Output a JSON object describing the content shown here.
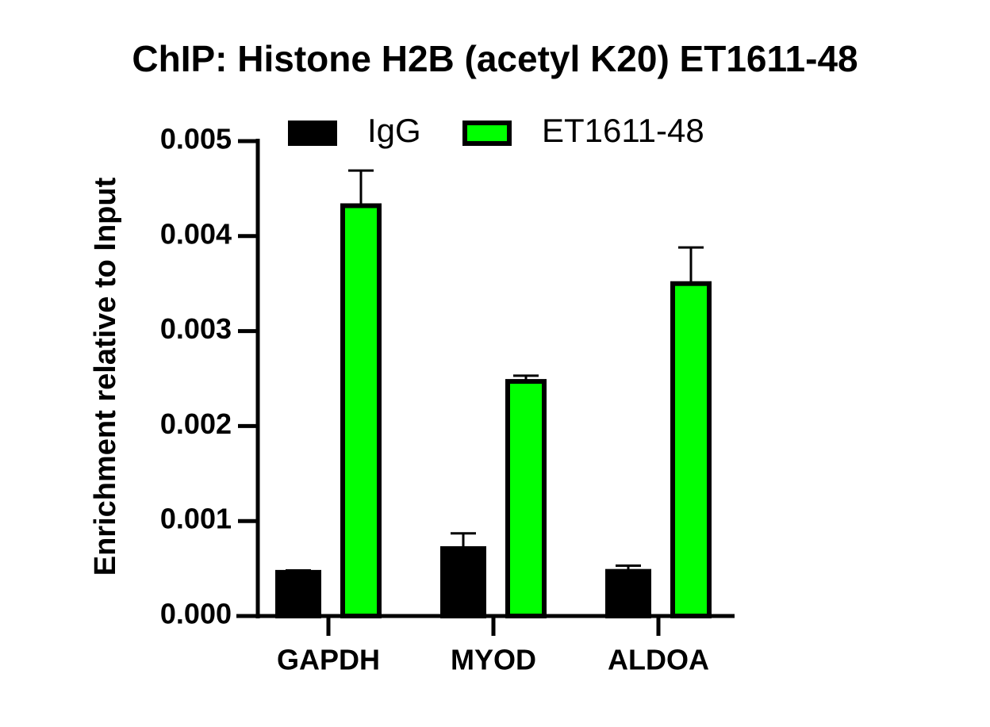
{
  "chart_data": {
    "type": "bar",
    "title": "ChIP: Histone H2B (acetyl K20) ET1611-48",
    "y_label": "Enrichment relative to Input",
    "categories": [
      "GAPDH",
      "MYOD",
      "ALDOA"
    ],
    "series": [
      {
        "name": "IgG",
        "color": "#000000",
        "values": [
          0.00046,
          0.00071,
          0.00047
        ],
        "errors": [
          2e-05,
          0.00016,
          6e-05
        ]
      },
      {
        "name": "ET1611-48",
        "color": "#00ff00",
        "values": [
          0.00432,
          0.00247,
          0.0035
        ],
        "errors": [
          0.00037,
          6e-05,
          0.00038
        ]
      }
    ],
    "ylim": [
      0,
      0.005
    ],
    "yticks": [
      {
        "value": 0,
        "label": "0.000"
      },
      {
        "value": 0.001,
        "label": "0.001"
      },
      {
        "value": 0.002,
        "label": "0.002"
      },
      {
        "value": 0.003,
        "label": "0.003"
      },
      {
        "value": 0.004,
        "label": "0.004"
      },
      {
        "value": 0.005,
        "label": "0.005"
      }
    ],
    "legend": "top"
  }
}
